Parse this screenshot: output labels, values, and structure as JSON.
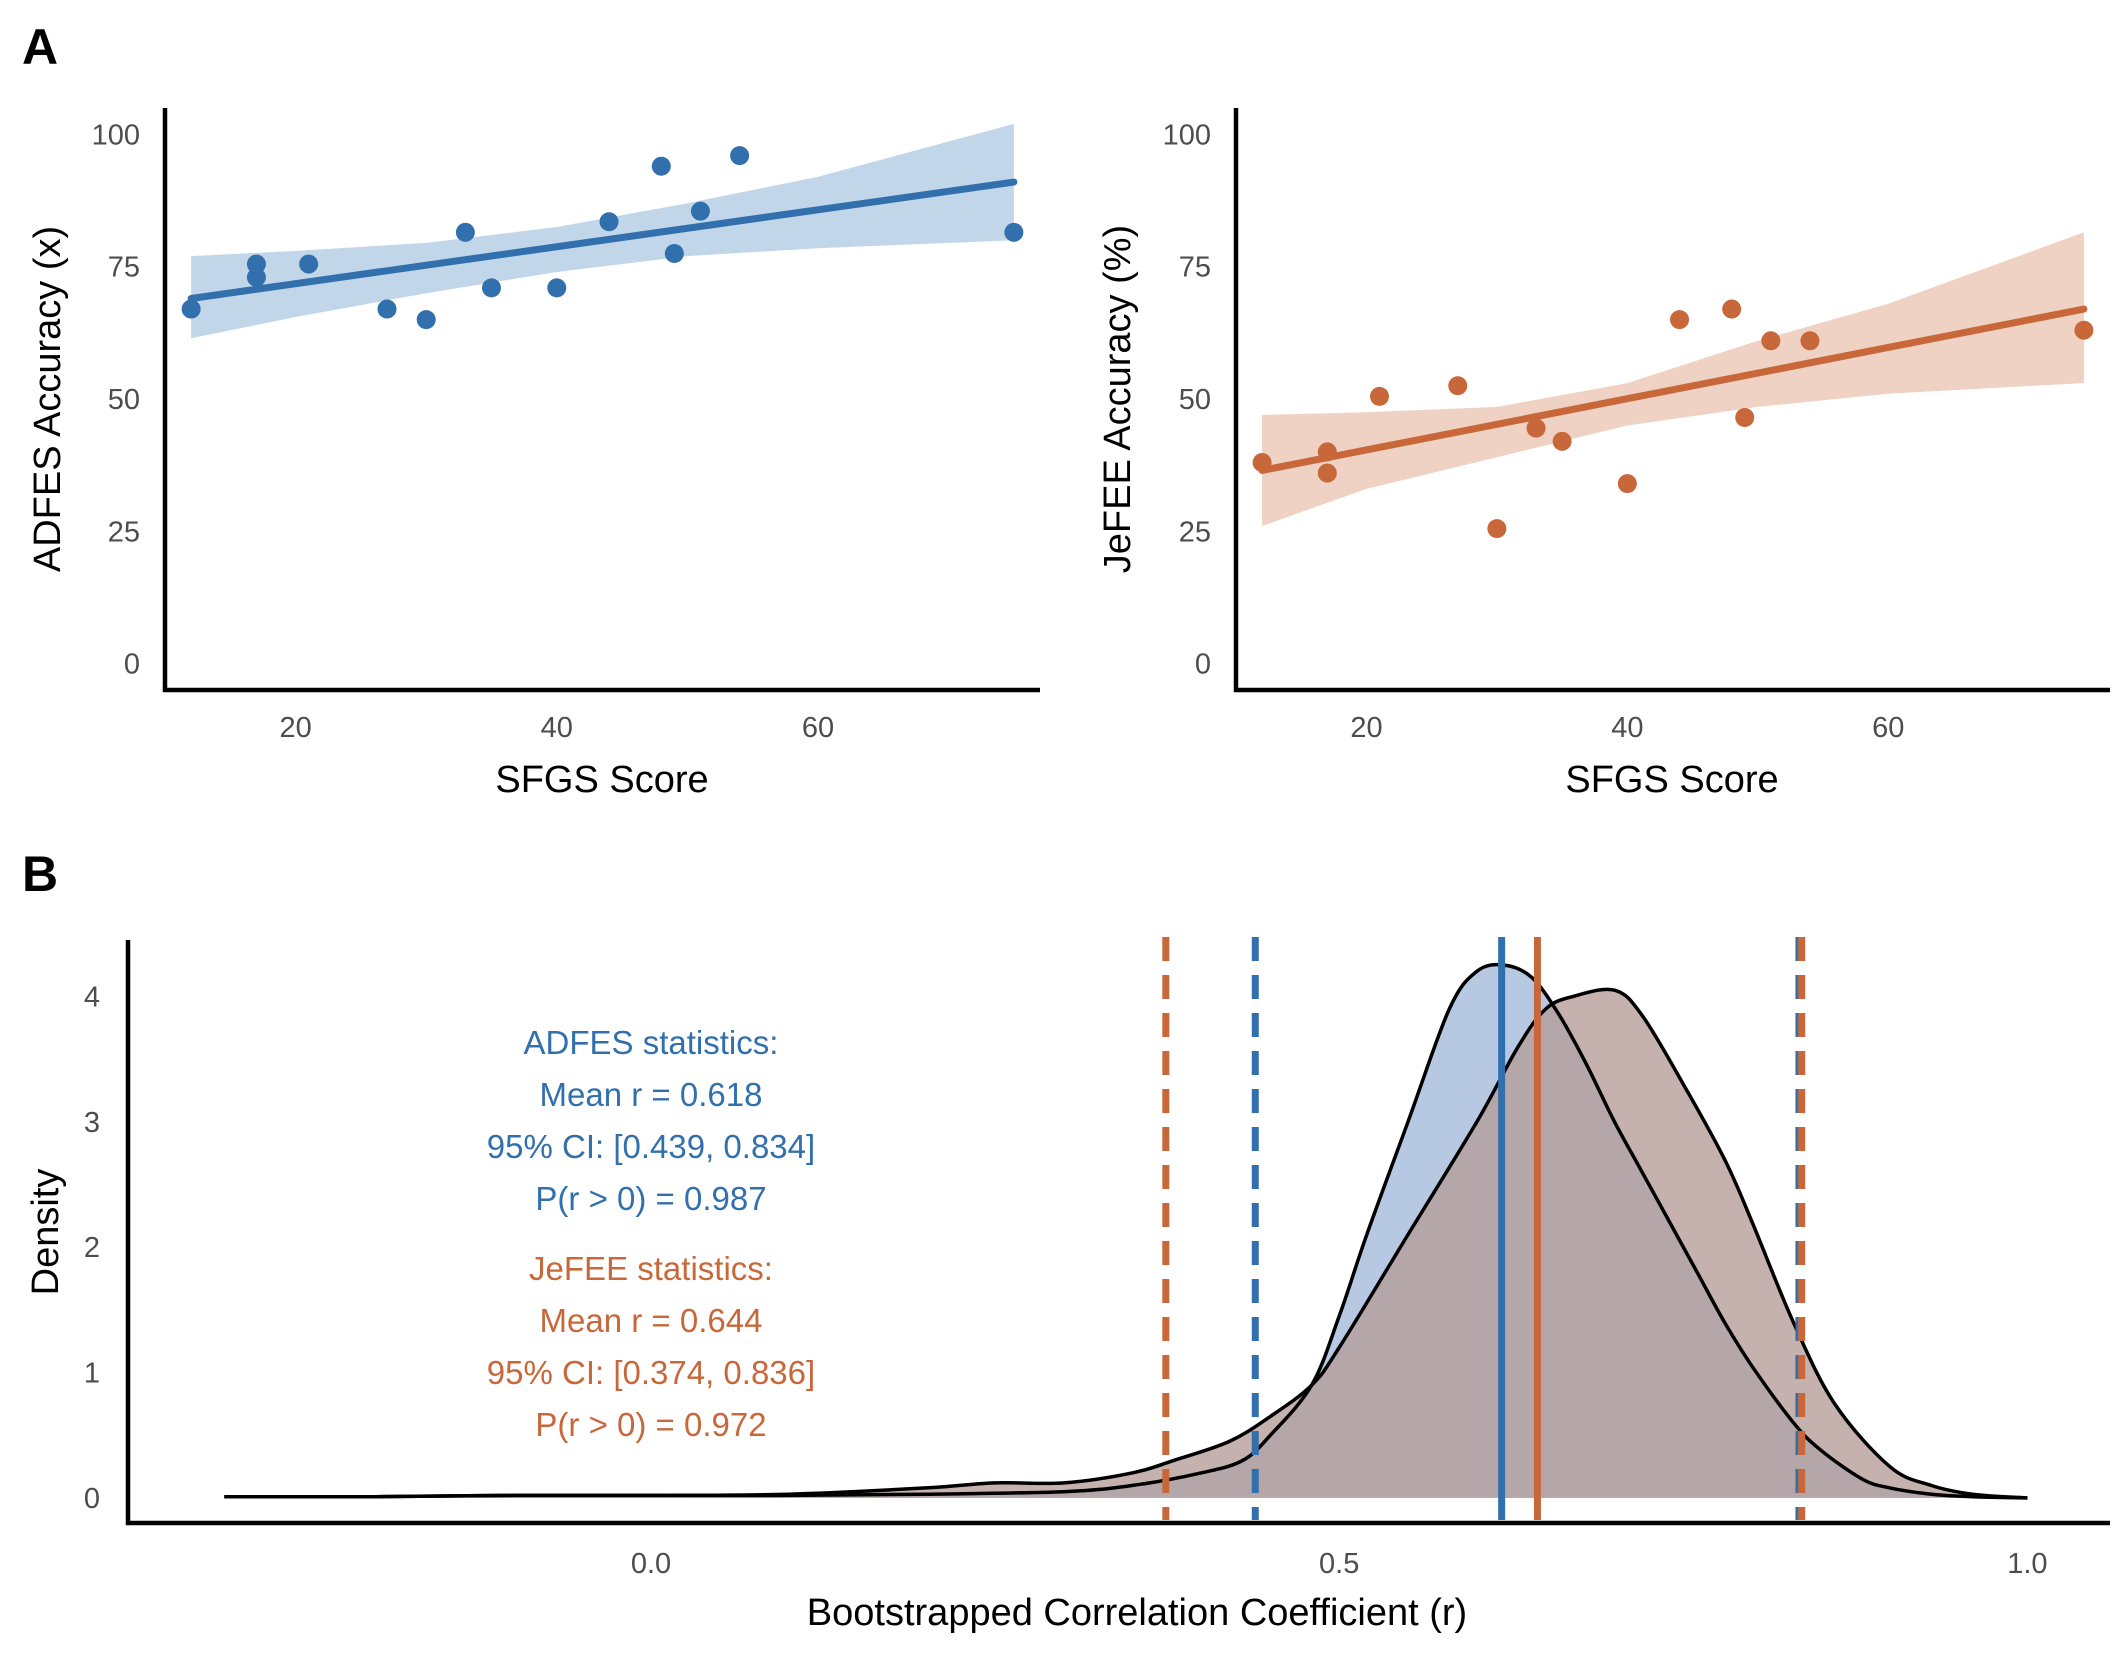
{
  "panels": {
    "a_label": "A",
    "b_label": "B"
  },
  "colors": {
    "adfes": "#3270AD",
    "adfes_band": "#C2D6EA",
    "jefee": "#C8683A",
    "jefee_band": "#EFD2C3",
    "adfes_density_fill": "#B7C9E2",
    "jefee_density_fill": "#B59C98"
  },
  "stats": {
    "adfes_title": "ADFES statistics:",
    "adfes_mean": "Mean r = 0.618",
    "adfes_ci": "95% CI: [0.439, 0.834]",
    "adfes_p": "P(r > 0) = 0.987",
    "jefee_title": "JeFEE statistics:",
    "jefee_mean": "Mean r = 0.644",
    "jefee_ci": "95% CI: [0.374, 0.836]",
    "jefee_p": "P(r > 0) = 0.972"
  },
  "chart_data": [
    {
      "type": "scatter",
      "title": "",
      "xlabel": "SFGS Score",
      "ylabel": "ADFES Accuracy (x)",
      "xlim": [
        10,
        77
      ],
      "ylim": [
        -5,
        105
      ],
      "xticks": [
        20,
        40,
        60
      ],
      "yticks": [
        0,
        25,
        50,
        75,
        100
      ],
      "color": "#3270AD",
      "points": [
        {
          "x": 12,
          "y": 67
        },
        {
          "x": 17,
          "y": 73
        },
        {
          "x": 17,
          "y": 75.5
        },
        {
          "x": 21,
          "y": 75.5
        },
        {
          "x": 27,
          "y": 67
        },
        {
          "x": 30,
          "y": 65
        },
        {
          "x": 33,
          "y": 81.5
        },
        {
          "x": 35,
          "y": 71
        },
        {
          "x": 40,
          "y": 71
        },
        {
          "x": 44,
          "y": 83.5
        },
        {
          "x": 48,
          "y": 94
        },
        {
          "x": 49,
          "y": 77.5
        },
        {
          "x": 51,
          "y": 85.5
        },
        {
          "x": 54,
          "y": 96
        },
        {
          "x": 75,
          "y": 81.5
        }
      ],
      "fit": {
        "x": [
          12,
          75
        ],
        "y": [
          69,
          91
        ]
      },
      "band": {
        "x": [
          12,
          20,
          30,
          40,
          50,
          60,
          75
        ],
        "lower": [
          61.5,
          65.5,
          70,
          74,
          77,
          78.5,
          80
        ],
        "upper": [
          77,
          78,
          79.5,
          82.5,
          87,
          92,
          102
        ]
      }
    },
    {
      "type": "scatter",
      "title": "",
      "xlabel": "SFGS Score",
      "ylabel": "JeFEE Accuracy (%)",
      "xlim": [
        10,
        77
      ],
      "ylim": [
        -5,
        105
      ],
      "xticks": [
        20,
        40,
        60
      ],
      "yticks": [
        0,
        25,
        50,
        75,
        100
      ],
      "color": "#C8683A",
      "points": [
        {
          "x": 12,
          "y": 38
        },
        {
          "x": 17,
          "y": 40
        },
        {
          "x": 17,
          "y": 36
        },
        {
          "x": 21,
          "y": 50.5
        },
        {
          "x": 27,
          "y": 52.5
        },
        {
          "x": 30,
          "y": 25.5
        },
        {
          "x": 33,
          "y": 44.5
        },
        {
          "x": 35,
          "y": 42
        },
        {
          "x": 40,
          "y": 34
        },
        {
          "x": 44,
          "y": 65
        },
        {
          "x": 48,
          "y": 67
        },
        {
          "x": 49,
          "y": 46.5
        },
        {
          "x": 51,
          "y": 61
        },
        {
          "x": 54,
          "y": 61
        },
        {
          "x": 75,
          "y": 63
        }
      ],
      "fit": {
        "x": [
          12,
          75
        ],
        "y": [
          36.5,
          67
        ]
      },
      "band": {
        "x": [
          12,
          20,
          30,
          40,
          50,
          60,
          75
        ],
        "lower": [
          26,
          33,
          39,
          45,
          48.5,
          51,
          53
        ],
        "upper": [
          47,
          47.5,
          48.5,
          53,
          61,
          68,
          81.5
        ]
      }
    },
    {
      "type": "area",
      "title": "",
      "xlabel": "Bootstrapped Correlation Coefficient (r)",
      "ylabel": "Density",
      "xlim": [
        -0.38,
        1.06
      ],
      "ylim": [
        -0.2,
        4.45
      ],
      "xticks": [
        0.0,
        0.5,
        1.0
      ],
      "xtick_labels": [
        "0.0",
        "0.5",
        "1.0"
      ],
      "yticks": [
        0,
        1,
        2,
        3,
        4
      ],
      "series": [
        {
          "name": "ADFES",
          "color": "#3270AD",
          "x": [
            -0.31,
            -0.2,
            -0.1,
            0.0,
            0.1,
            0.2,
            0.3,
            0.35,
            0.4,
            0.43,
            0.45,
            0.48,
            0.5,
            0.52,
            0.55,
            0.58,
            0.6,
            0.62,
            0.64,
            0.66,
            0.68,
            0.7,
            0.72,
            0.74,
            0.76,
            0.78,
            0.8,
            0.83,
            0.85,
            0.88,
            0.9,
            0.93,
            0.96,
            1.0
          ],
          "y": [
            0.01,
            0.01,
            0.02,
            0.02,
            0.02,
            0.03,
            0.05,
            0.1,
            0.2,
            0.3,
            0.5,
            0.9,
            1.45,
            2.1,
            3.0,
            3.9,
            4.2,
            4.25,
            4.15,
            3.85,
            3.45,
            3.0,
            2.6,
            2.2,
            1.8,
            1.4,
            1.05,
            0.6,
            0.38,
            0.15,
            0.08,
            0.03,
            0.01,
            0.0
          ]
        },
        {
          "name": "JeFEE",
          "color": "#C8683A",
          "x": [
            -0.31,
            -0.2,
            -0.1,
            0.0,
            0.1,
            0.2,
            0.25,
            0.3,
            0.35,
            0.38,
            0.42,
            0.45,
            0.48,
            0.5,
            0.55,
            0.6,
            0.63,
            0.65,
            0.67,
            0.7,
            0.72,
            0.75,
            0.78,
            0.8,
            0.83,
            0.86,
            0.9,
            0.93,
            0.96,
            1.0
          ],
          "y": [
            0.01,
            0.01,
            0.02,
            0.02,
            0.03,
            0.08,
            0.12,
            0.12,
            0.2,
            0.3,
            0.45,
            0.65,
            0.9,
            1.2,
            2.1,
            3.0,
            3.6,
            3.9,
            4.0,
            4.05,
            3.85,
            3.3,
            2.7,
            2.2,
            1.4,
            0.75,
            0.25,
            0.1,
            0.03,
            0.0
          ]
        }
      ],
      "vlines": [
        {
          "series": "ADFES",
          "x": 0.618,
          "style": "solid"
        },
        {
          "series": "JeFEE",
          "x": 0.644,
          "style": "solid"
        },
        {
          "series": "ADFES",
          "x": 0.439,
          "style": "dashed"
        },
        {
          "series": "ADFES",
          "x": 0.834,
          "style": "dashed"
        },
        {
          "series": "JeFEE",
          "x": 0.374,
          "style": "dashed"
        },
        {
          "series": "JeFEE",
          "x": 0.836,
          "style": "dashed"
        }
      ]
    }
  ]
}
